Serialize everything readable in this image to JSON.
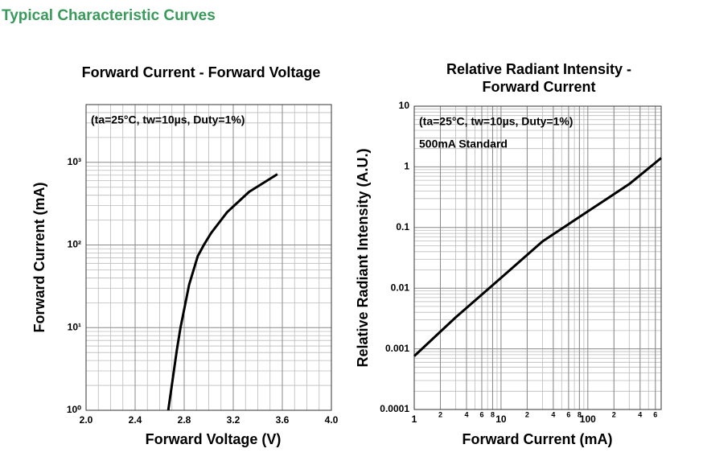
{
  "heading": "Typical Characteristic Curves",
  "chart_data": [
    {
      "type": "line",
      "title": "Forward Current - Forward Voltage",
      "x_label": "Forward Voltage (V)",
      "y_label": "Forward Current (mA)",
      "annotations": [
        "(ta=25°C, tw=10µs, Duty=1%)"
      ],
      "xlim": [
        2,
        4
      ],
      "ylim": [
        1,
        5000
      ],
      "y_log": true,
      "grid": true,
      "minor_grid": true,
      "xticks": [
        {
          "value": 2,
          "label": "2.0"
        },
        2.4,
        2.8,
        3.2,
        3.6,
        {
          "value": 4,
          "label": "4.0"
        }
      ],
      "yticks": [
        {
          "value": 1,
          "label": "10⁰"
        },
        {
          "value": 10,
          "label": "10¹"
        },
        {
          "value": 100,
          "label": "10²"
        },
        {
          "value": 1000,
          "label": "10³"
        }
      ],
      "series": [
        {
          "color": "#000000",
          "x": [
            2.67,
            2.74,
            2.77,
            2.84,
            2.91,
            2.96,
            3.02,
            3.15,
            3.33,
            3.56
          ],
          "values": [
            1,
            5.4,
            10,
            33,
            73,
            100,
            140,
            250,
            440,
            720
          ]
        }
      ]
    },
    {
      "type": "line",
      "title": "Relative Radiant Intensity - Forward Current",
      "x_label": "Forward Current (mA)",
      "y_label": "Relative Radiant Intensity (A.U.)",
      "annotations": [
        "(ta=25°C, tw=10µs, Duty=1%)",
        "500mA Standard"
      ],
      "xlim": [
        1,
        700
      ],
      "ylim": [
        0.0001,
        10
      ],
      "x_log": true,
      "y_log": true,
      "grid": true,
      "minor_grid": true,
      "xticks": [
        1,
        {
          "value": 2,
          "label": "2"
        },
        {
          "value": 4,
          "label": "4"
        },
        {
          "value": 6,
          "label": "6"
        },
        {
          "value": 8,
          "label": "8"
        },
        10,
        {
          "value": 20,
          "label": "2"
        },
        {
          "value": 40,
          "label": "4"
        },
        {
          "value": 60,
          "label": "6"
        },
        {
          "value": 80,
          "label": "8"
        },
        100,
        {
          "value": 200,
          "label": "2"
        },
        {
          "value": 400,
          "label": "4"
        },
        {
          "value": 600,
          "label": "6"
        }
      ],
      "yticks": [
        0.0001,
        0.001,
        0.01,
        0.1,
        1,
        10
      ],
      "series": [
        {
          "color": "#000000",
          "x": [
            1,
            3,
            10,
            30,
            100,
            300,
            700
          ],
          "values": [
            0.00076,
            0.0033,
            0.0148,
            0.059,
            0.184,
            0.52,
            1.4
          ]
        }
      ]
    }
  ]
}
